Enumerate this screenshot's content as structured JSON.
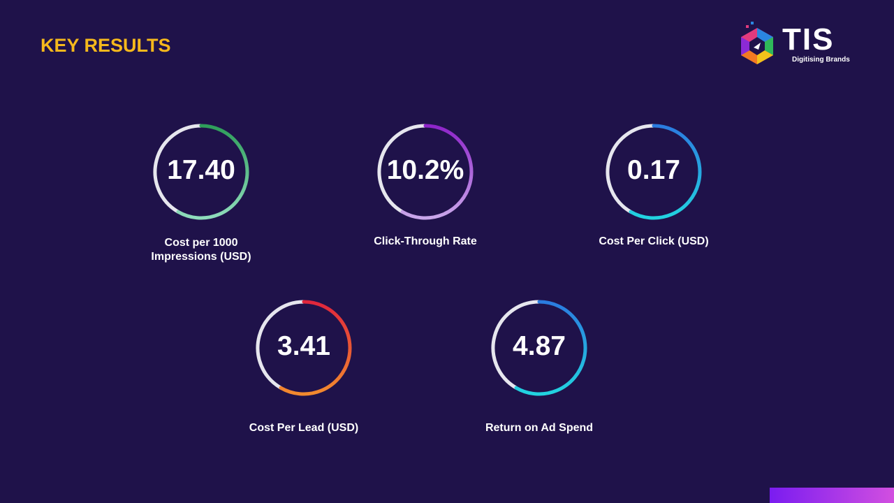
{
  "header": {
    "title": "KEY RESULTS"
  },
  "logo": {
    "name": "TIS",
    "tagline": "Digitising Brands"
  },
  "metrics": [
    {
      "value": "17.40",
      "label": "Cost per 1000 Impressions (USD)"
    },
    {
      "value": "10.2%",
      "label": "Click-Through Rate"
    },
    {
      "value": "0.17",
      "label": "Cost Per Click (USD)"
    },
    {
      "value": "3.41",
      "label": "Cost Per Lead (USD)"
    },
    {
      "value": "4.87",
      "label": "Return on Ad Spend"
    }
  ]
}
